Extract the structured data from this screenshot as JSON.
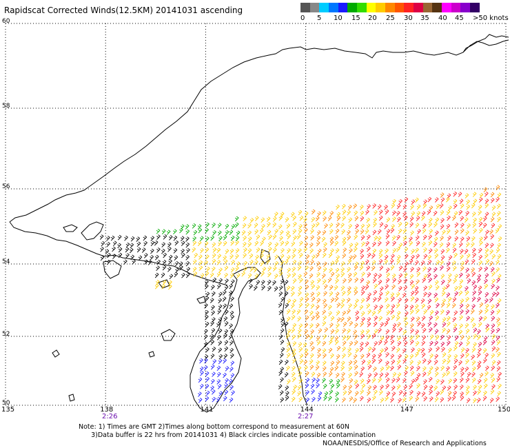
{
  "title": "Rapidscat Corrected Winds(12.5KM) 20141031 ascending",
  "legend": {
    "colors": [
      "#555555",
      "#888888",
      "#00ccff",
      "#0077ff",
      "#1a1aff",
      "#00aa00",
      "#33dd00",
      "#ffff00",
      "#ffcc00",
      "#ff8800",
      "#ff5500",
      "#ff2222",
      "#dd0044",
      "#996633",
      "#553311",
      "#ff00ff",
      "#cc00cc",
      "#8800cc",
      "#330066"
    ],
    "ticks": [
      "0",
      "5",
      "10",
      "15",
      "20",
      "25",
      "30",
      "35",
      "40",
      "45",
      ">50 knots"
    ]
  },
  "axes": {
    "lat_labels": [
      "60",
      "58",
      "56",
      "54",
      "52",
      "50"
    ],
    "lon_labels": [
      "135",
      "138",
      "141",
      "144",
      "147",
      "150"
    ],
    "lat_range": [
      50,
      60
    ],
    "lon_range": [
      135,
      150
    ]
  },
  "times": [
    "2:26",
    "2:27"
  ],
  "notes": "Note: 1) Times are GMT 2)Times along bottom correspond to measurement at 60N\n      3)Data buffer is 22 hrs from 20141031 4) Black circles indicate possible contamination",
  "credit": "NOAA/NESDIS/Office of Research and Applications",
  "wind_field": {
    "description_colors": {
      "calm": "#000000",
      "light_blue": "#1a1aff",
      "green": "#00aa00",
      "yellow": "#ffcc00",
      "orange": "#ff8800",
      "red": "#ff2222",
      "magenta": "#dd0044"
    }
  }
}
